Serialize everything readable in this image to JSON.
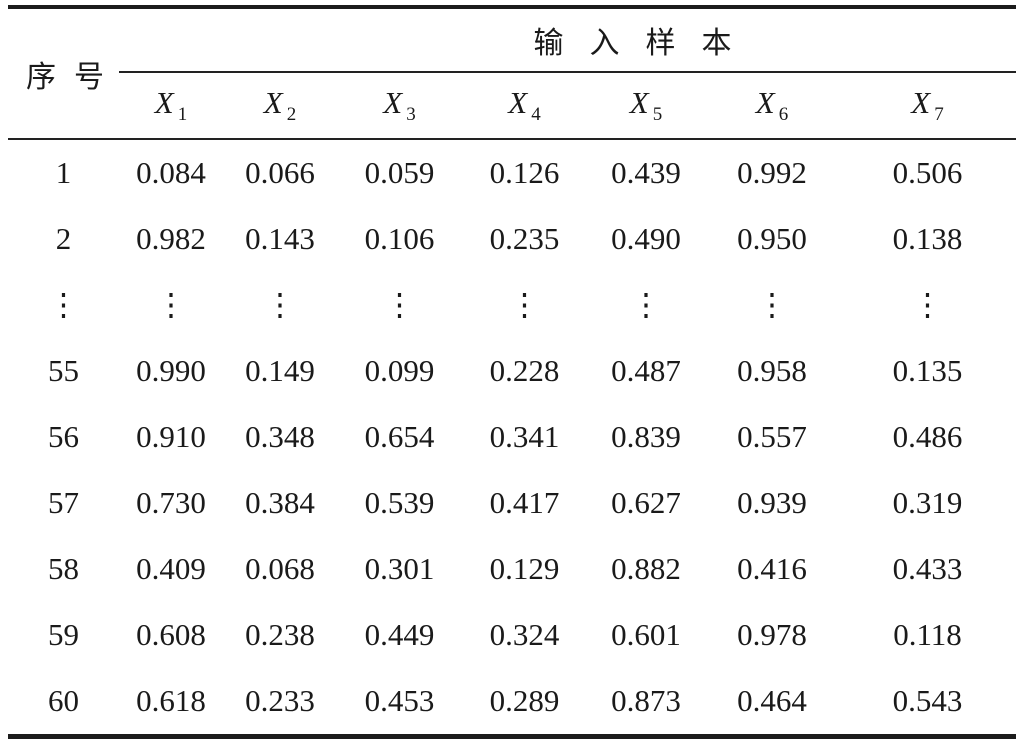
{
  "table": {
    "corner_header": "序号",
    "group_header": "输入样本",
    "columns": [
      {
        "label": "X",
        "sub": "1"
      },
      {
        "label": "X",
        "sub": "2"
      },
      {
        "label": "X",
        "sub": "3"
      },
      {
        "label": "X",
        "sub": "4"
      },
      {
        "label": "X",
        "sub": "5"
      },
      {
        "label": "X",
        "sub": "6"
      },
      {
        "label": "X",
        "sub": "7"
      }
    ],
    "rows": [
      {
        "id": "1",
        "values": [
          "0.084",
          "0.066",
          "0.059",
          "0.126",
          "0.439",
          "0.992",
          "0.506"
        ]
      },
      {
        "id": "2",
        "values": [
          "0.982",
          "0.143",
          "0.106",
          "0.235",
          "0.490",
          "0.950",
          "0.138"
        ]
      },
      {
        "id": "⋮",
        "values": [
          "⋮",
          "⋮",
          "⋮",
          "⋮",
          "⋮",
          "⋮",
          "⋮"
        ]
      },
      {
        "id": "55",
        "values": [
          "0.990",
          "0.149",
          "0.099",
          "0.228",
          "0.487",
          "0.958",
          "0.135"
        ]
      },
      {
        "id": "56",
        "values": [
          "0.910",
          "0.348",
          "0.654",
          "0.341",
          "0.839",
          "0.557",
          "0.486"
        ]
      },
      {
        "id": "57",
        "values": [
          "0.730",
          "0.384",
          "0.539",
          "0.417",
          "0.627",
          "0.939",
          "0.319"
        ]
      },
      {
        "id": "58",
        "values": [
          "0.409",
          "0.068",
          "0.301",
          "0.129",
          "0.882",
          "0.416",
          "0.433"
        ]
      },
      {
        "id": "59",
        "values": [
          "0.608",
          "0.238",
          "0.449",
          "0.324",
          "0.601",
          "0.978",
          "0.118"
        ]
      },
      {
        "id": "60",
        "values": [
          "0.618",
          "0.233",
          "0.453",
          "0.289",
          "0.873",
          "0.464",
          "0.543"
        ]
      }
    ]
  }
}
